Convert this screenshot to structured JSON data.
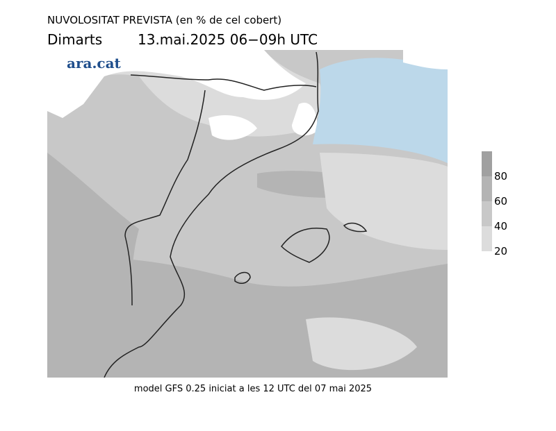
{
  "header": {
    "title": "NUVOLOSITAT PREVISTA (en % de cel cobert)",
    "day": "Dimarts",
    "date": "13.mai.2025 06−09h UTC"
  },
  "logo": "ara.cat",
  "footer": "model GFS 0.25 iniciat a les 12 UTC del 07 mai 2025",
  "colorbar": {
    "lim": [
      20,
      100
    ],
    "ticks": [
      20,
      40,
      60,
      80
    ],
    "colors": [
      "#dcdcdc",
      "#c8c8c8",
      "#b4b4b4",
      "#a0a0a0"
    ]
  }
}
